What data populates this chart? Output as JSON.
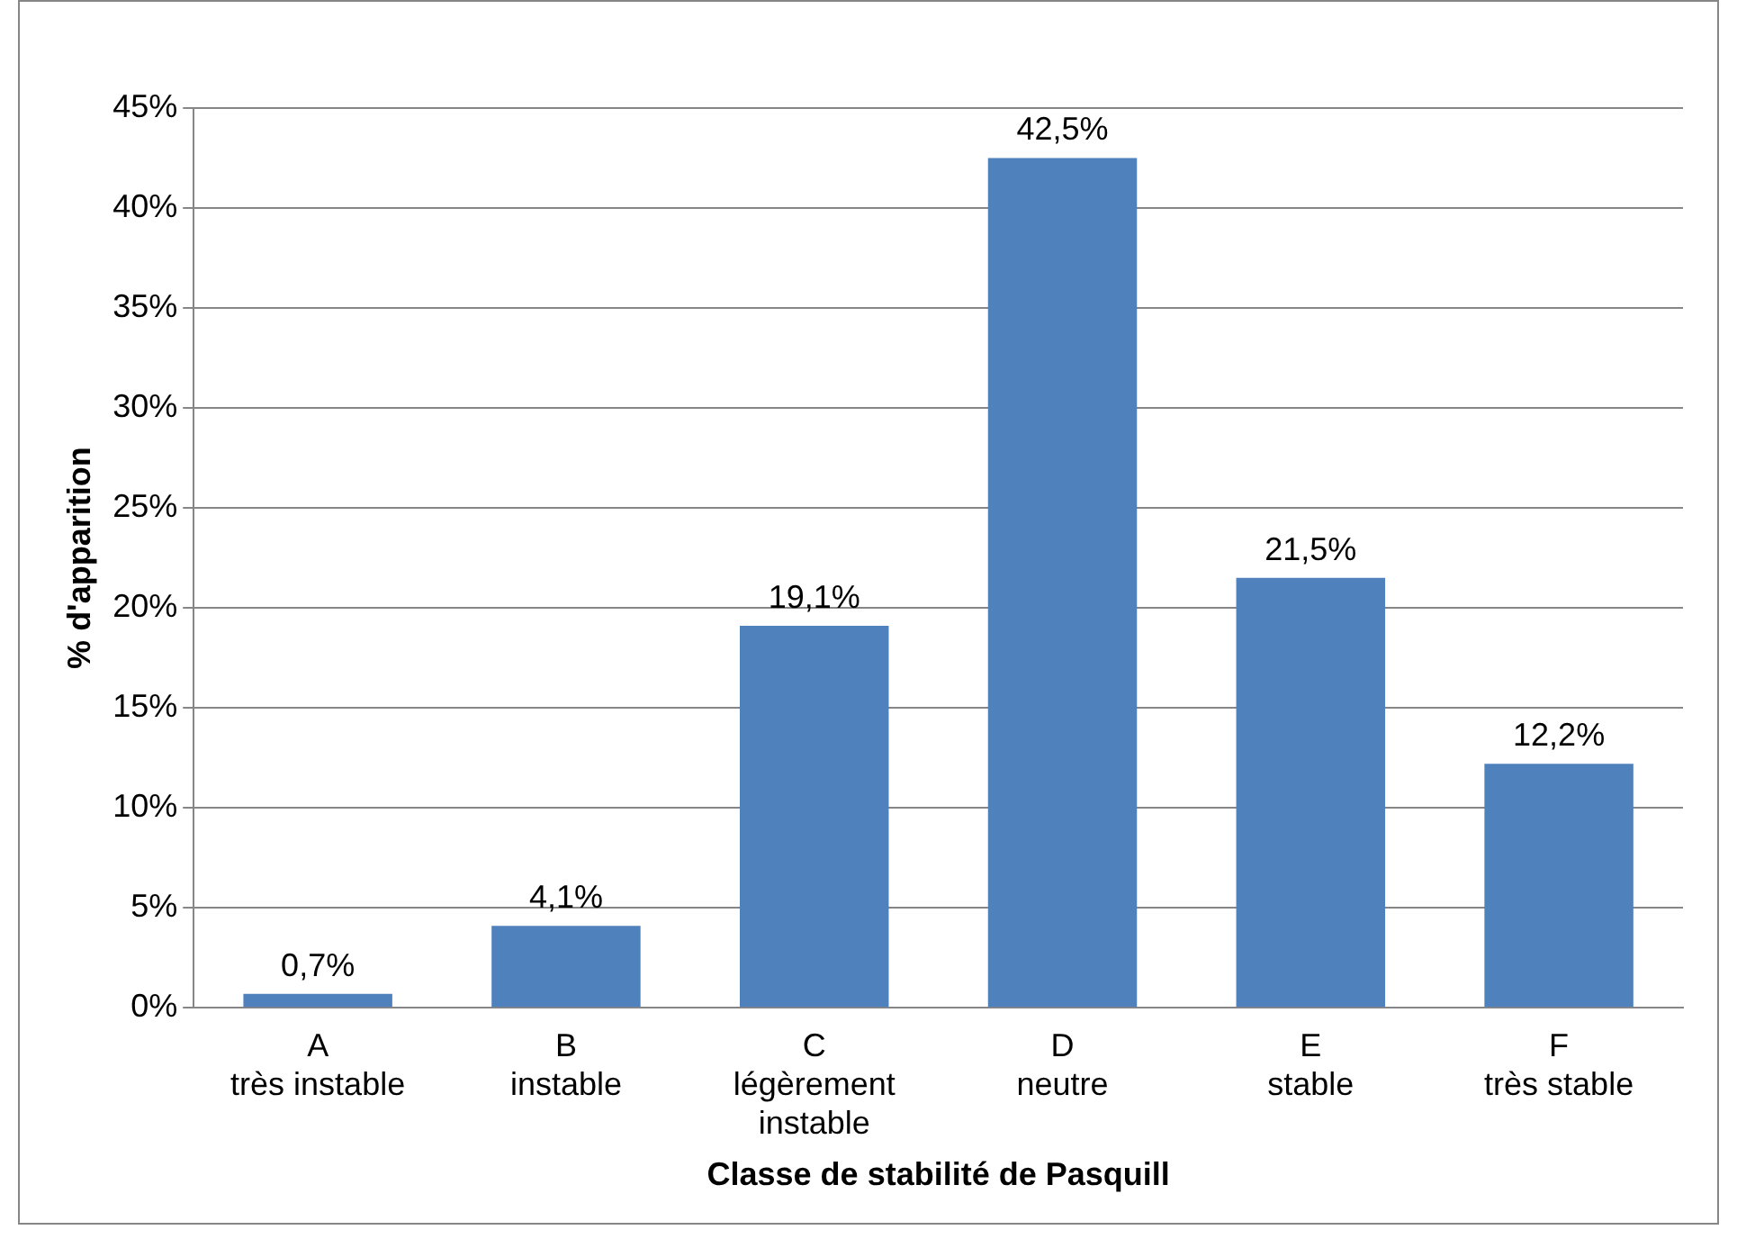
{
  "chart_data": {
    "type": "bar",
    "xlabel": "Classe de stabilité de Pasquill",
    "ylabel": "% d'apparition",
    "categories": [
      "A\ntrès instable",
      "B\ninstable",
      "C\nlégèrement\ninstable",
      "D\nneutre",
      "E\nstable",
      "F\ntrès stable"
    ],
    "values": [
      0.7,
      4.1,
      19.1,
      42.5,
      21.5,
      12.2
    ],
    "value_labels": [
      "0,7%",
      "4,1%",
      "19,1%",
      "42,5%",
      "21,5%",
      "12,2%"
    ],
    "color": "#4f81bd",
    "ylim": [
      0,
      45
    ],
    "yticks": [
      {
        "value": 0,
        "label": "0%"
      },
      {
        "value": 5,
        "label": "5%"
      },
      {
        "value": 10,
        "label": "10%"
      },
      {
        "value": 15,
        "label": "15%"
      },
      {
        "value": 20,
        "label": "20%"
      },
      {
        "value": 25,
        "label": "25%"
      },
      {
        "value": 30,
        "label": "30%"
      },
      {
        "value": 35,
        "label": "35%"
      },
      {
        "value": 40,
        "label": "40%"
      },
      {
        "value": 45,
        "label": "45%"
      }
    ],
    "grid": "y",
    "legend": false
  }
}
